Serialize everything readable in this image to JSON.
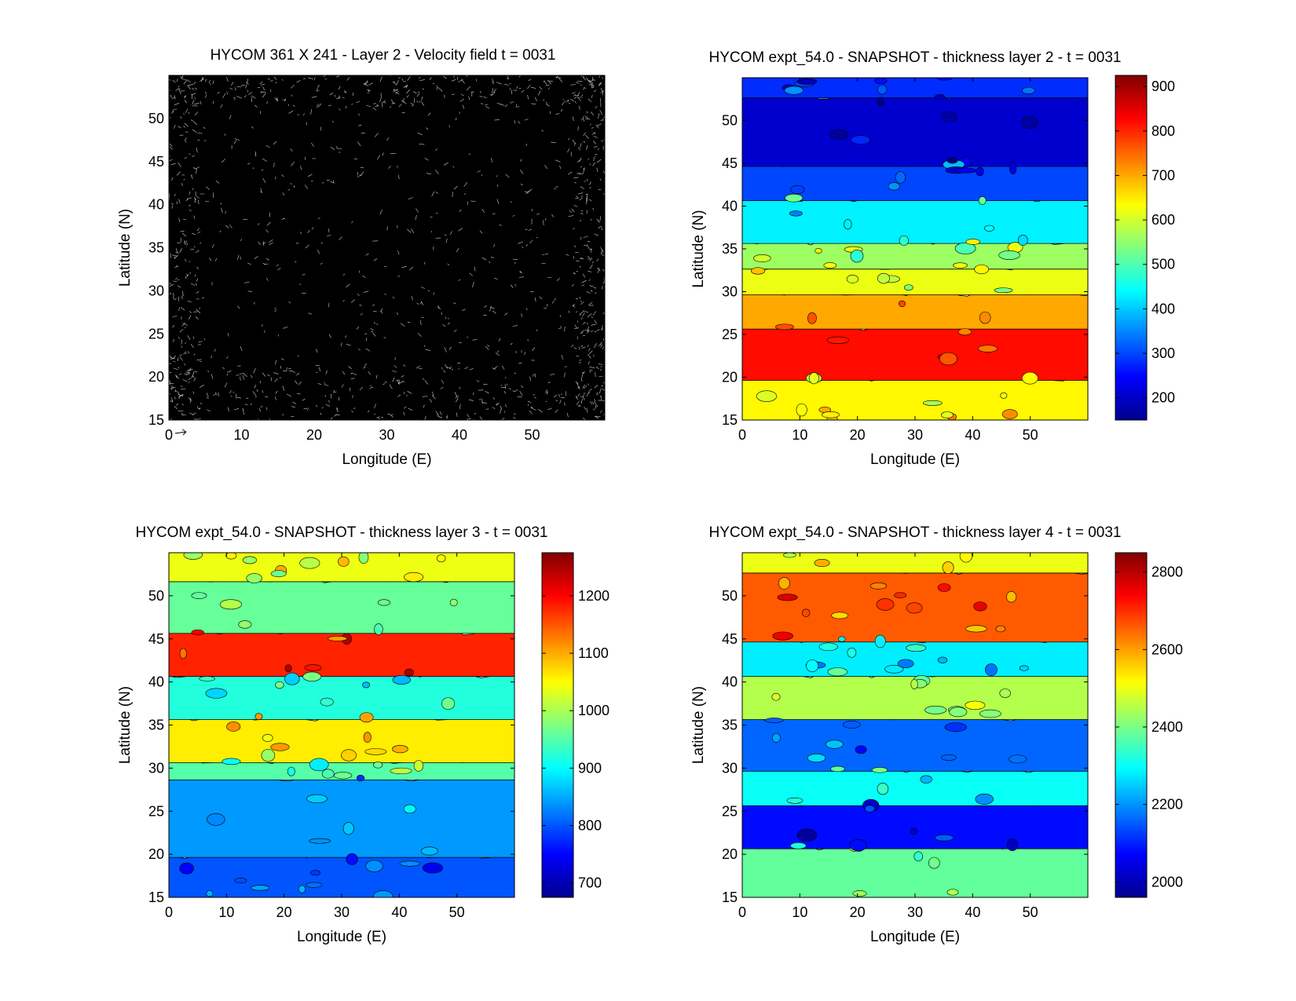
{
  "chart_data": [
    {
      "type": "quiver",
      "title": "HYCOM 361 X 241 - Layer 2 - Velocity field  t = 0031",
      "xlabel": "Longitude (E)",
      "ylabel": "Latitude (N)",
      "xlim": [
        0,
        60
      ],
      "ylim": [
        15,
        55
      ],
      "xticks": [
        0,
        10,
        20,
        30,
        40,
        50
      ],
      "yticks": [
        15,
        20,
        25,
        30,
        35,
        40,
        45,
        50
      ],
      "reference_arrow": "at origin (0, 15)",
      "grid": "361 X 241",
      "layer": 2,
      "t": "0031"
    },
    {
      "type": "heatmap",
      "title": "HYCOM expt_54.0 - SNAPSHOT - thickness layer 2 - t = 0031",
      "xlabel": "Longitude (E)",
      "ylabel": "Latitude (N)",
      "xlim": [
        0,
        60
      ],
      "ylim": [
        15,
        55
      ],
      "xticks": [
        0,
        10,
        20,
        30,
        40,
        50
      ],
      "yticks": [
        15,
        20,
        25,
        30,
        35,
        40,
        45,
        50
      ],
      "colorbar": {
        "range": [
          150,
          925
        ],
        "ticks": [
          200,
          300,
          400,
          500,
          600,
          700,
          800,
          900
        ]
      },
      "bands": [
        {
          "lat_range": [
            15,
            20
          ],
          "value": 640
        },
        {
          "lat_range": [
            20,
            26
          ],
          "value": 820
        },
        {
          "lat_range": [
            26,
            30
          ],
          "value": 700
        },
        {
          "lat_range": [
            30,
            33
          ],
          "value": 620
        },
        {
          "lat_range": [
            33,
            36
          ],
          "value": 560
        },
        {
          "lat_range": [
            36,
            41
          ],
          "value": 430
        },
        {
          "lat_range": [
            41,
            45
          ],
          "value": 300
        },
        {
          "lat_range": [
            45,
            53
          ],
          "value": 210
        },
        {
          "lat_range": [
            53,
            55
          ],
          "value": 280
        }
      ]
    },
    {
      "type": "heatmap",
      "title": "HYCOM expt_54.0 - SNAPSHOT - thickness layer 3 - t = 0031",
      "xlabel": "Longitude (E)",
      "ylabel": "Latitude (N)",
      "xlim": [
        0,
        60
      ],
      "ylim": [
        15,
        55
      ],
      "xticks": [
        0,
        10,
        20,
        30,
        40,
        50
      ],
      "yticks": [
        15,
        20,
        25,
        30,
        35,
        40,
        45,
        50
      ],
      "colorbar": {
        "range": [
          675,
          1275
        ],
        "ticks": [
          700,
          800,
          900,
          1000,
          1100,
          1200
        ]
      },
      "bands": [
        {
          "lat_range": [
            15,
            20
          ],
          "value": 800
        },
        {
          "lat_range": [
            20,
            29
          ],
          "value": 840
        },
        {
          "lat_range": [
            29,
            31
          ],
          "value": 950
        },
        {
          "lat_range": [
            31,
            36
          ],
          "value": 1060
        },
        {
          "lat_range": [
            36,
            41
          ],
          "value": 920
        },
        {
          "lat_range": [
            41,
            46
          ],
          "value": 1180
        },
        {
          "lat_range": [
            46,
            52
          ],
          "value": 960
        },
        {
          "lat_range": [
            52,
            55
          ],
          "value": 1040
        }
      ]
    },
    {
      "type": "heatmap",
      "title": "HYCOM expt_54.0 - SNAPSHOT - thickness layer 4 - t = 0031",
      "xlabel": "Longitude (E)",
      "ylabel": "Latitude (N)",
      "xlim": [
        0,
        60
      ],
      "ylim": [
        15,
        55
      ],
      "xticks": [
        0,
        10,
        20,
        30,
        40,
        50
      ],
      "yticks": [
        15,
        20,
        25,
        30,
        35,
        40,
        45,
        50
      ],
      "colorbar": {
        "range": [
          1960,
          2850
        ],
        "ticks": [
          2000,
          2200,
          2400,
          2600,
          2800
        ]
      },
      "bands": [
        {
          "lat_range": [
            15,
            21
          ],
          "value": 2380
        },
        {
          "lat_range": [
            21,
            26
          ],
          "value": 2080
        },
        {
          "lat_range": [
            26,
            30
          ],
          "value": 2300
        },
        {
          "lat_range": [
            30,
            36
          ],
          "value": 2160
        },
        {
          "lat_range": [
            36,
            41
          ],
          "value": 2450
        },
        {
          "lat_range": [
            41,
            45
          ],
          "value": 2280
        },
        {
          "lat_range": [
            45,
            53
          ],
          "value": 2660
        },
        {
          "lat_range": [
            53,
            55
          ],
          "value": 2500
        }
      ]
    }
  ]
}
